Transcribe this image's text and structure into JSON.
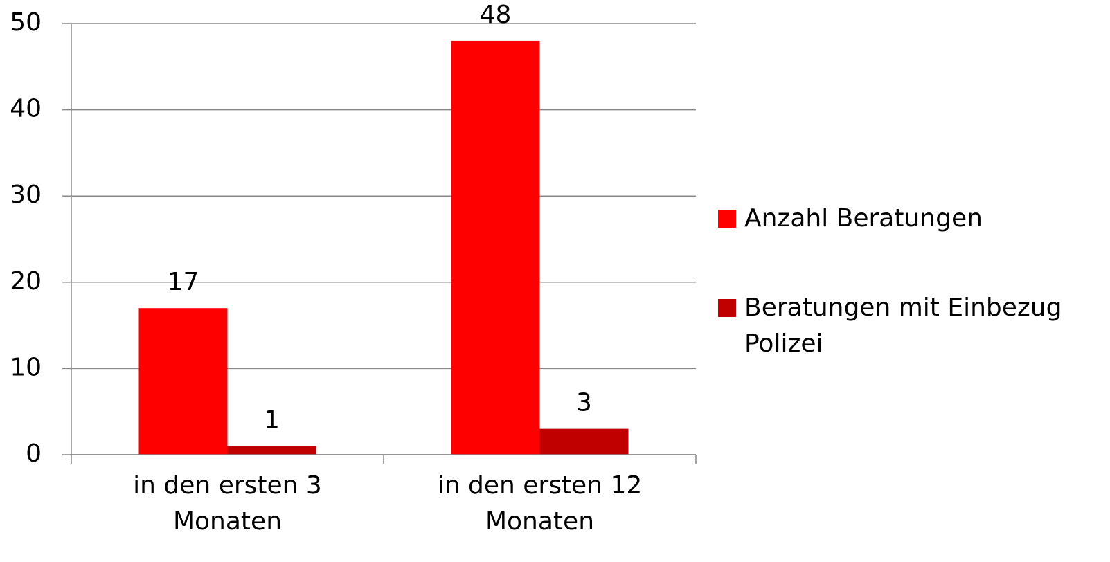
{
  "chart_data": {
    "type": "bar",
    "categories": [
      "in den ersten 3 Monaten",
      "in den ersten 12 Monaten"
    ],
    "series": [
      {
        "name": "Anzahl Beratungen",
        "color": "#ff0000",
        "values": [
          17,
          48
        ]
      },
      {
        "name": "Beratungen mit Einbezug Polizei",
        "color": "#c00000",
        "values": [
          1,
          3
        ]
      }
    ],
    "ylim": [
      0,
      50
    ],
    "yticks": [
      0,
      10,
      20,
      30,
      40,
      50
    ],
    "grid": true,
    "legend": "right"
  }
}
